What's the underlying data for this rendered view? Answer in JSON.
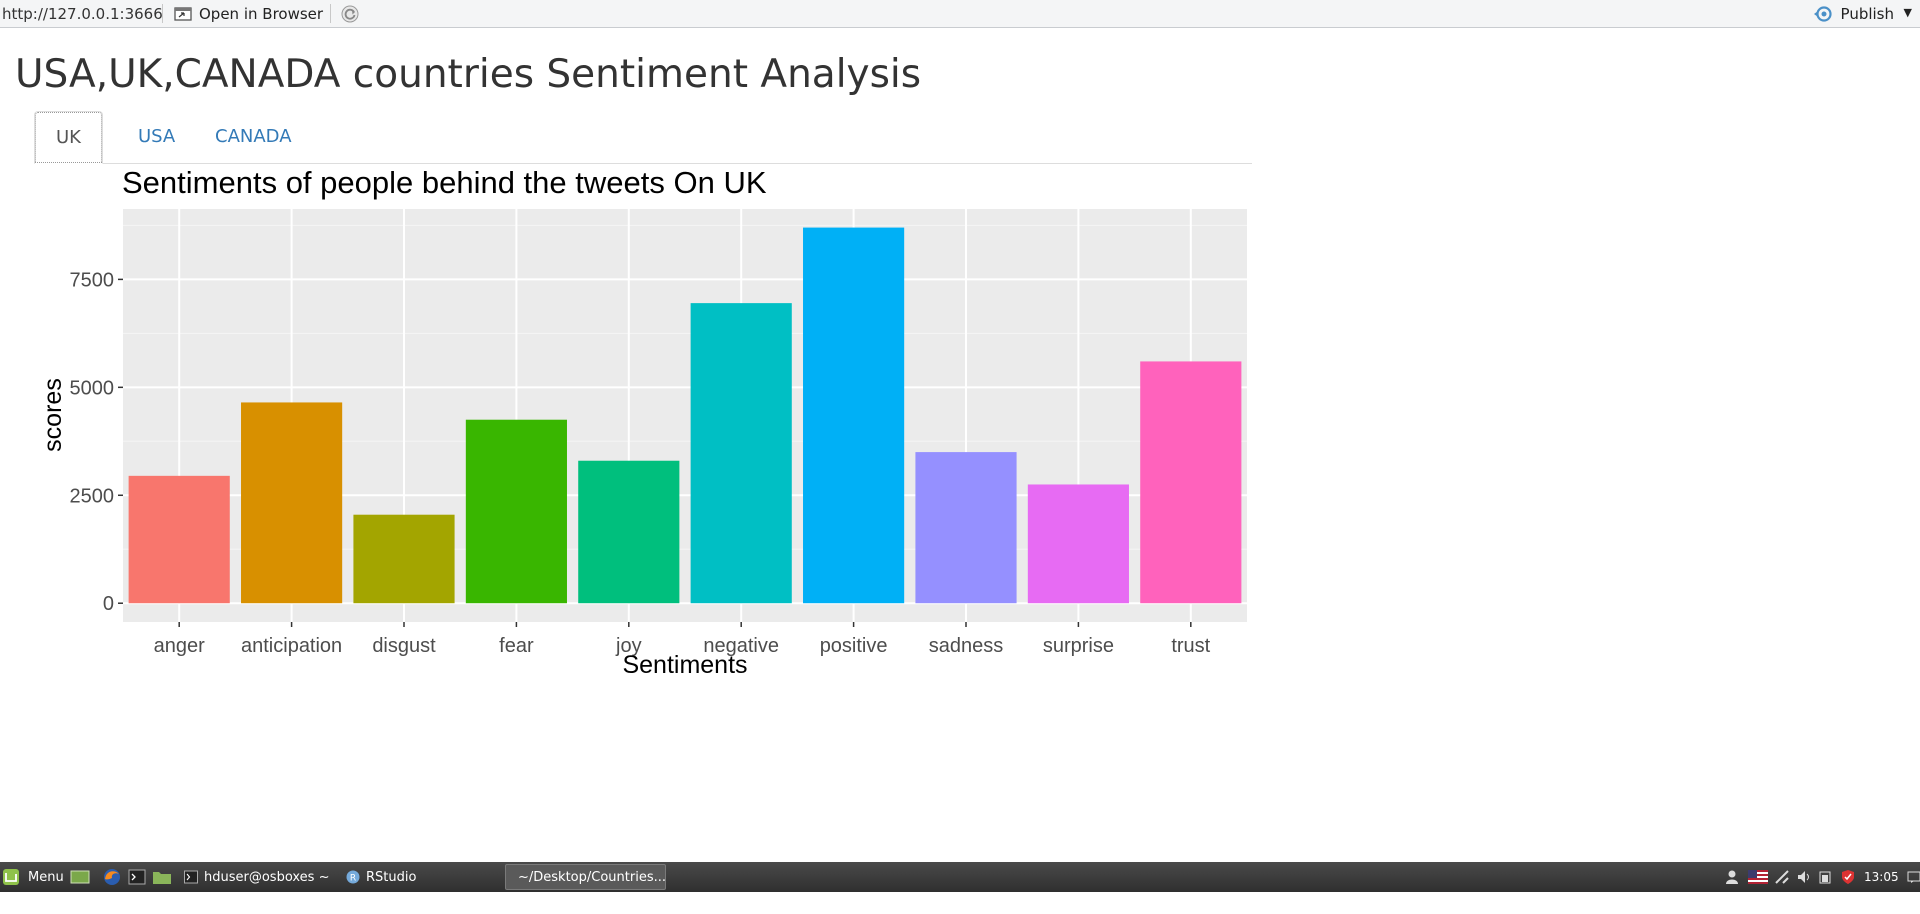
{
  "toolbar": {
    "url": "http://127.0.0.1:3666",
    "open_in_browser": "Open in Browser",
    "publish": "Publish"
  },
  "app": {
    "title": "USA,UK,CANADA countries Sentiment Analysis",
    "tabs": [
      {
        "label": "UK",
        "active": true
      },
      {
        "label": "USA",
        "active": false
      },
      {
        "label": "CANADA",
        "active": false
      }
    ]
  },
  "chart_data": {
    "type": "bar",
    "title": "Sentiments of people behind the tweets On UK",
    "xlabel": "Sentiments",
    "ylabel": "scores",
    "categories": [
      "anger",
      "anticipation",
      "disgust",
      "fear",
      "joy",
      "negative",
      "positive",
      "sadness",
      "surprise",
      "trust"
    ],
    "values": [
      2950,
      4650,
      2050,
      4250,
      3300,
      6950,
      8700,
      3500,
      2750,
      5600
    ],
    "colors": [
      "#F8766D",
      "#D89000",
      "#A3A500",
      "#39B600",
      "#00BF7D",
      "#00BFC4",
      "#00B0F6",
      "#9590FF",
      "#E76BF3",
      "#FF62BC"
    ],
    "yticks": [
      0,
      2500,
      5000,
      7500
    ],
    "ylim": [
      -435,
      9130
    ],
    "grid": true,
    "legend": "none"
  },
  "taskbar": {
    "menu": "Menu",
    "windows": [
      {
        "label": "hduser@osboxes ~",
        "active": false
      },
      {
        "label": "RStudio",
        "active": false
      },
      {
        "label": "~/Desktop/Countries...",
        "active": true
      }
    ],
    "clock": "13:05"
  }
}
